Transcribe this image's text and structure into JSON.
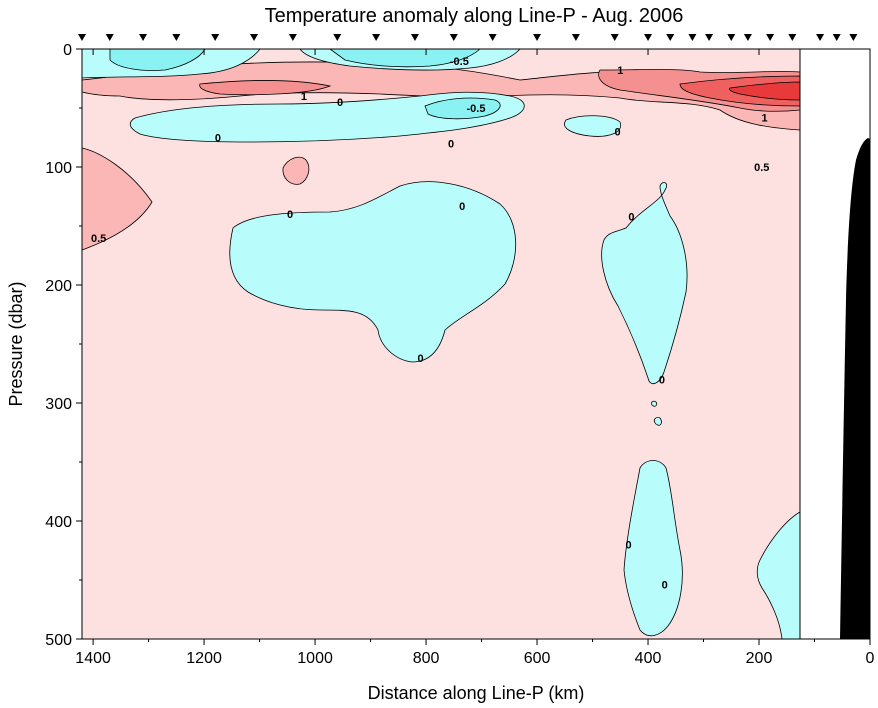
{
  "chart_data": {
    "type": "contour",
    "title": "Temperature anomaly along Line-P - Aug. 2006",
    "xlabel": "Distance along Line-P (km)",
    "ylabel": "Pressure (dbar)",
    "xlim": [
      1420,
      0
    ],
    "ylim": [
      500,
      0
    ],
    "x_ticks": [
      1400,
      1200,
      1000,
      800,
      600,
      400,
      200,
      0
    ],
    "y_ticks": [
      0,
      100,
      200,
      300,
      400,
      500
    ],
    "station_markers_km": [
      1420,
      1370,
      1310,
      1250,
      1180,
      1110,
      1040,
      960,
      890,
      820,
      750,
      680,
      600,
      530,
      460,
      400,
      360,
      320,
      290,
      250,
      220,
      180,
      140,
      90,
      60,
      30
    ],
    "data_coverage_km": [
      1420,
      125
    ],
    "colors": {
      "positive_fill": "#fde0e0",
      "positive_light": "#fbb6b6",
      "positive_mid": "#f59090",
      "positive_strong": "#ef6060",
      "positive_max": "#e83a3a",
      "negative_fill": "#b8fcfc",
      "negative_strong": "#8af2f2",
      "bathymetry": "#000000"
    },
    "contour_labels": [
      {
        "text": "-0.5",
        "x": 740,
        "y": 10
      },
      {
        "text": "1",
        "x": 450,
        "y": 18
      },
      {
        "text": "1",
        "x": 1020,
        "y": 40
      },
      {
        "text": "0",
        "x": 955,
        "y": 45
      },
      {
        "text": "-0.5",
        "x": 710,
        "y": 50
      },
      {
        "text": "1",
        "x": 190,
        "y": 58
      },
      {
        "text": "0",
        "x": 1175,
        "y": 75
      },
      {
        "text": "0",
        "x": 755,
        "y": 80
      },
      {
        "text": "0",
        "x": 455,
        "y": 70
      },
      {
        "text": "0.5",
        "x": 195,
        "y": 100
      },
      {
        "text": "0",
        "x": 1045,
        "y": 140
      },
      {
        "text": "0",
        "x": 735,
        "y": 133
      },
      {
        "text": "0",
        "x": 430,
        "y": 142
      },
      {
        "text": "0.5",
        "x": 1390,
        "y": 160
      },
      {
        "text": "0",
        "x": 810,
        "y": 262
      },
      {
        "text": "0",
        "x": 375,
        "y": 280
      },
      {
        "text": "0",
        "x": 435,
        "y": 420
      },
      {
        "text": "0",
        "x": 370,
        "y": 454
      }
    ]
  }
}
